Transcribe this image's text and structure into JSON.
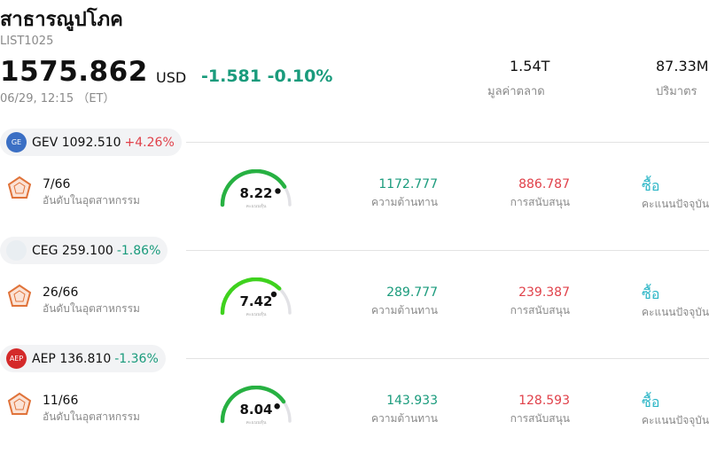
{
  "header": {
    "title": "สาธารณูปโภค",
    "symbol": "LIST1025",
    "price": "1575.862",
    "currency": "USD",
    "change": "-1.581 -0.10%",
    "timestamp": "06/29, 12:15 （ET）"
  },
  "stats": {
    "market_cap_value": "1.54T",
    "market_cap_label": "มูลค่าตลาด",
    "volume_value": "87.33M",
    "volume_label": "ปริมาตร"
  },
  "holdings": [
    {
      "ticker": "GEV",
      "price": "1092.510",
      "pct": "+4.26%",
      "pct_color": "#e0414a",
      "logo_color": "#3b6fc4",
      "logo_text": "GE",
      "rank": "7/66",
      "rank_label": "อันดับในอุตสาหกรรม",
      "score": "8.22",
      "score_label": "คะแนนหุ้น",
      "score_fraction": 0.82,
      "resistance": "1172.777",
      "resistance_label": "ความต้านทาน",
      "support": "886.787",
      "support_label": "การสนับสนุน",
      "rating": "ซื้อ",
      "rating_label": "คะแนนปัจจุบัน"
    },
    {
      "ticker": "CEG",
      "price": "259.100",
      "pct": "-1.86%",
      "pct_color": "#1a9b7c",
      "logo_color": "#e9eef2",
      "logo_text": "",
      "rank": "26/66",
      "rank_label": "อันดับในอุตสาหกรรม",
      "score": "7.42",
      "score_label": "คะแนนหุ้น",
      "score_fraction": 0.742,
      "resistance": "289.777",
      "resistance_label": "ความต้านทาน",
      "support": "239.387",
      "support_label": "การสนับสนุน",
      "rating": "ซื้อ",
      "rating_label": "คะแนนปัจจุบัน"
    },
    {
      "ticker": "AEP",
      "price": "136.810",
      "pct": "-1.36%",
      "pct_color": "#1a9b7c",
      "logo_color": "#d42a2a",
      "logo_text": "AEP",
      "rank": "11/66",
      "rank_label": "อันดับในอุตสาหกรรม",
      "score": "8.04",
      "score_label": "คะแนนหุ้น",
      "score_fraction": 0.804,
      "resistance": "143.933",
      "resistance_label": "ความต้านทาน",
      "support": "128.593",
      "support_label": "การสนับสนุน",
      "rating": "ซื้อ",
      "rating_label": "คะแนนปัจจุบัน"
    }
  ],
  "icons": {
    "rank": "pentagon-rank-icon",
    "gauge": "score-gauge"
  }
}
